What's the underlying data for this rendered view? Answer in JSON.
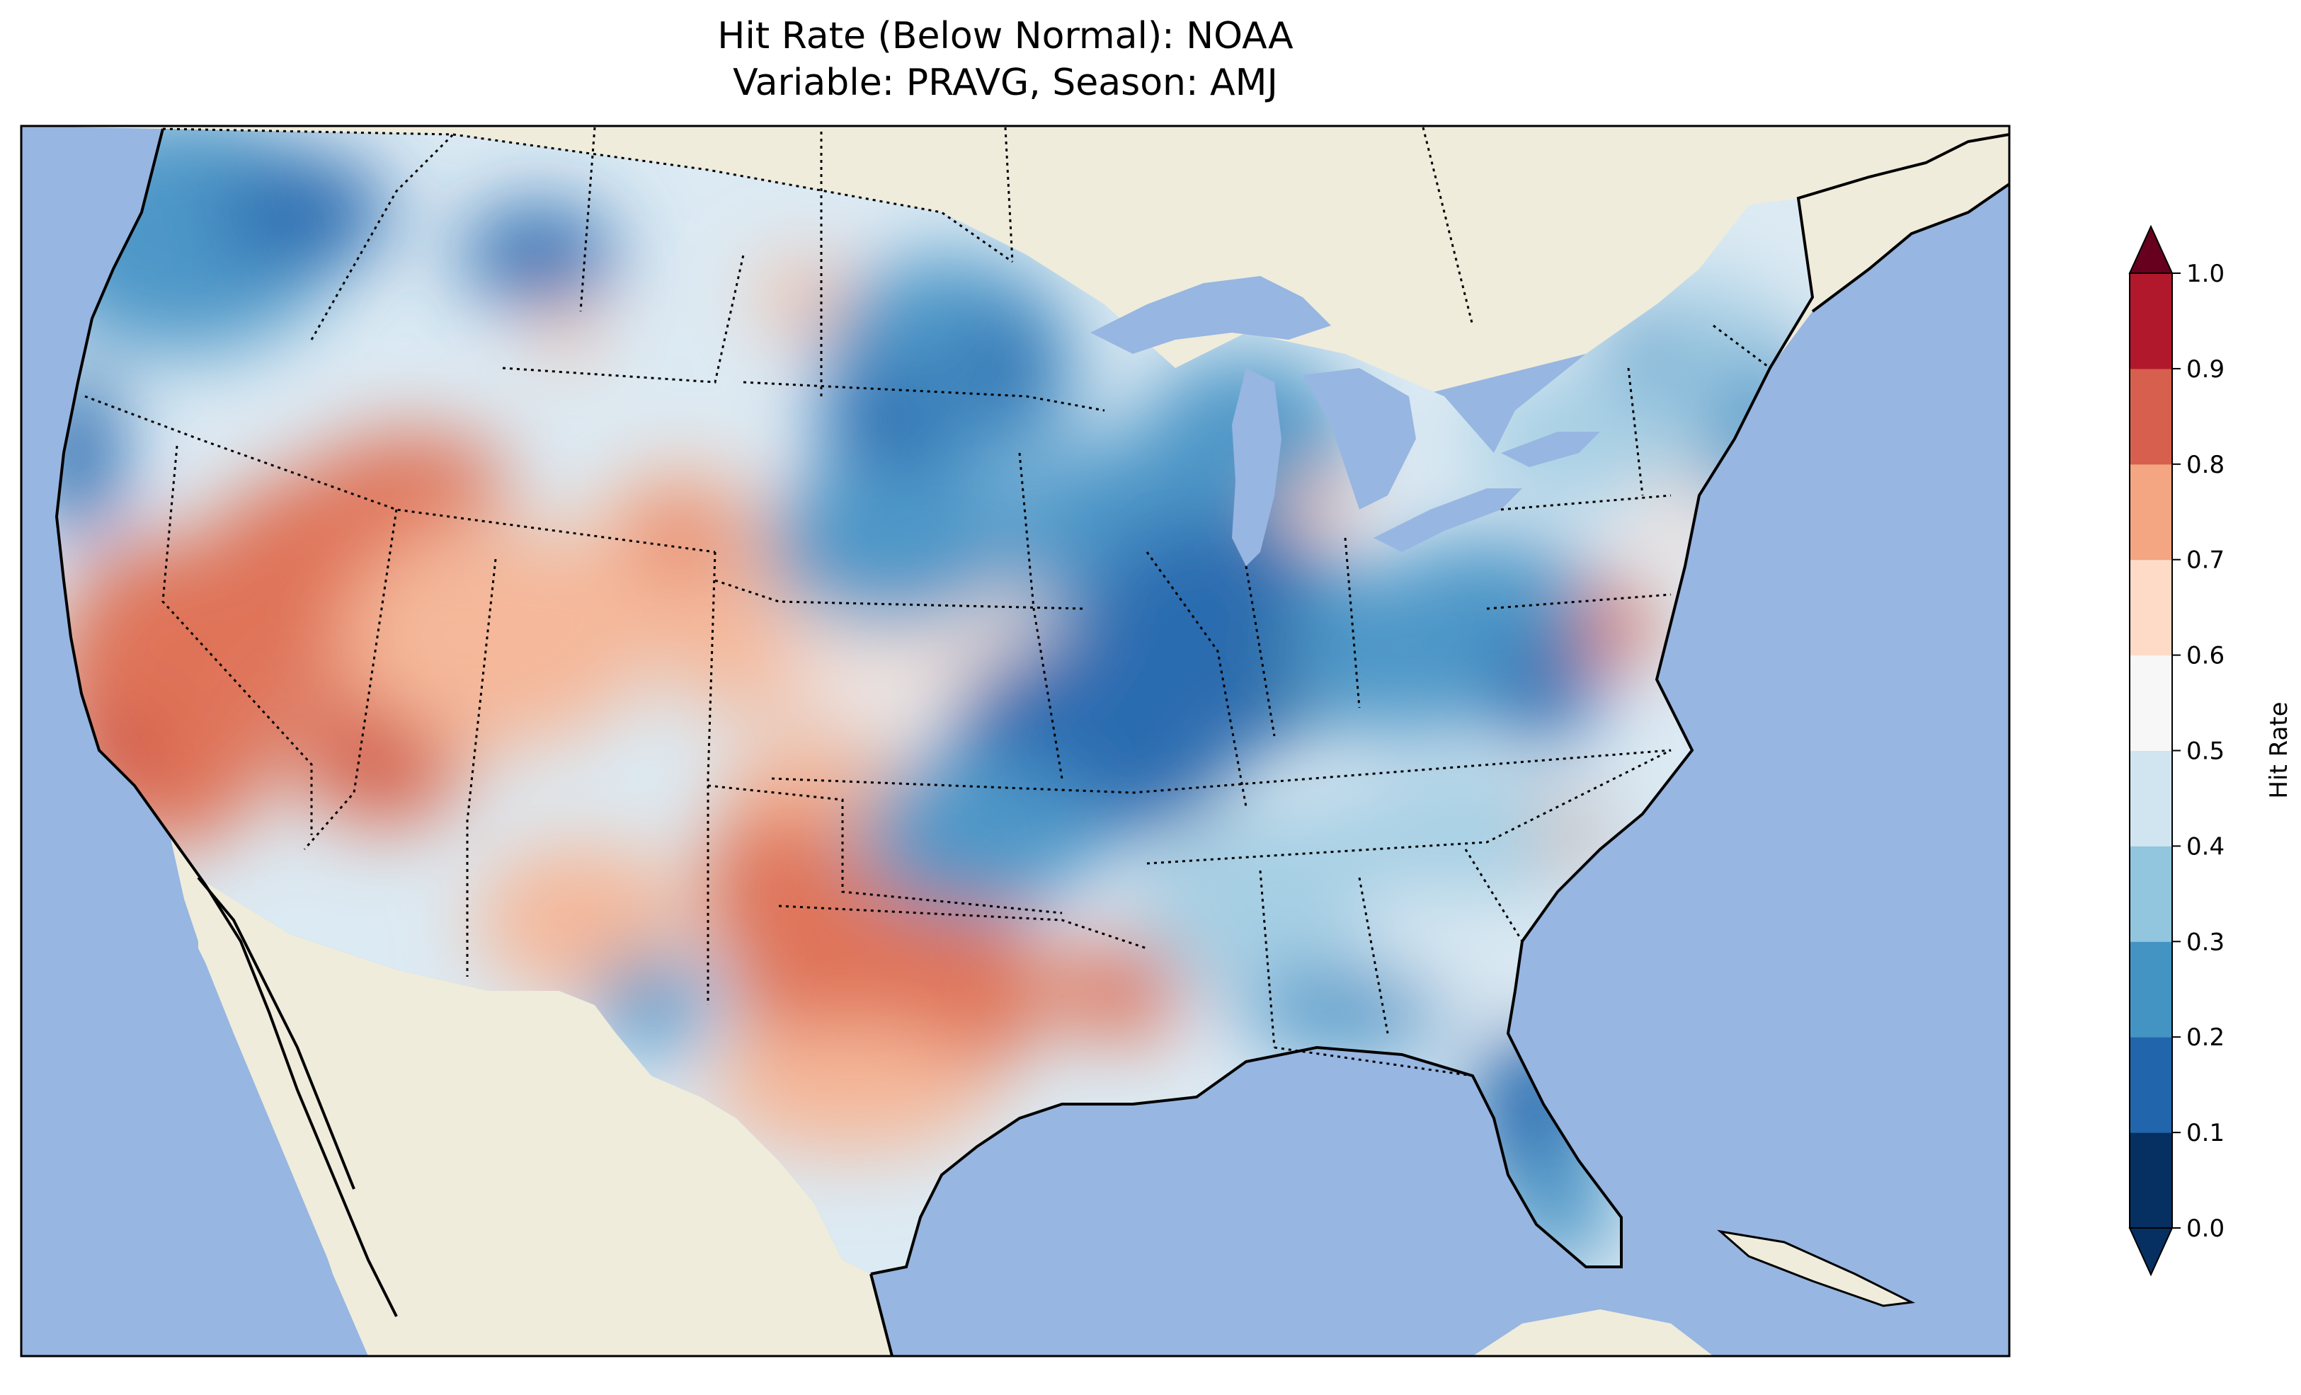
{
  "title_line1": "Hit Rate (Below Normal): NOAA",
  "title_line2": "Variable: PRAVG, Season: AMJ",
  "colorbar": {
    "label": "Hit Rate",
    "ticks": [
      "0.0",
      "0.1",
      "0.2",
      "0.3",
      "0.4",
      "0.5",
      "0.6",
      "0.7",
      "0.8",
      "0.9",
      "1.0"
    ],
    "colors": [
      "#053061",
      "#2166ac",
      "#4393c3",
      "#92c5de",
      "#d1e5f0",
      "#f7f7f7",
      "#fddbc7",
      "#f4a582",
      "#d6604d",
      "#b2182b",
      "#67001f"
    ],
    "bins": [
      "#073a6e",
      "#2b6cb0",
      "#4d97c8",
      "#a6cfe4",
      "#dceaf3",
      "#f6e4dc",
      "#f5b89a",
      "#df7358",
      "#bd2330"
    ]
  },
  "colors": {
    "ocean": "#97b6e1",
    "land": "#efecdc",
    "lake": "#97b6e1"
  },
  "regions": [
    {
      "name": "pacific-northwest",
      "level": 3
    },
    {
      "name": "northern-rockies",
      "level": 2
    },
    {
      "name": "california",
      "level": 7
    },
    {
      "name": "great-basin",
      "level": 7
    },
    {
      "name": "four-corners",
      "level": 6
    },
    {
      "name": "texas-south",
      "level": 7
    },
    {
      "name": "upper-midwest",
      "level": 2
    },
    {
      "name": "ohio-valley",
      "level": 1
    },
    {
      "name": "southeast",
      "level": 3
    },
    {
      "name": "florida",
      "level": 2
    },
    {
      "name": "northeast",
      "level": 3
    }
  ]
}
